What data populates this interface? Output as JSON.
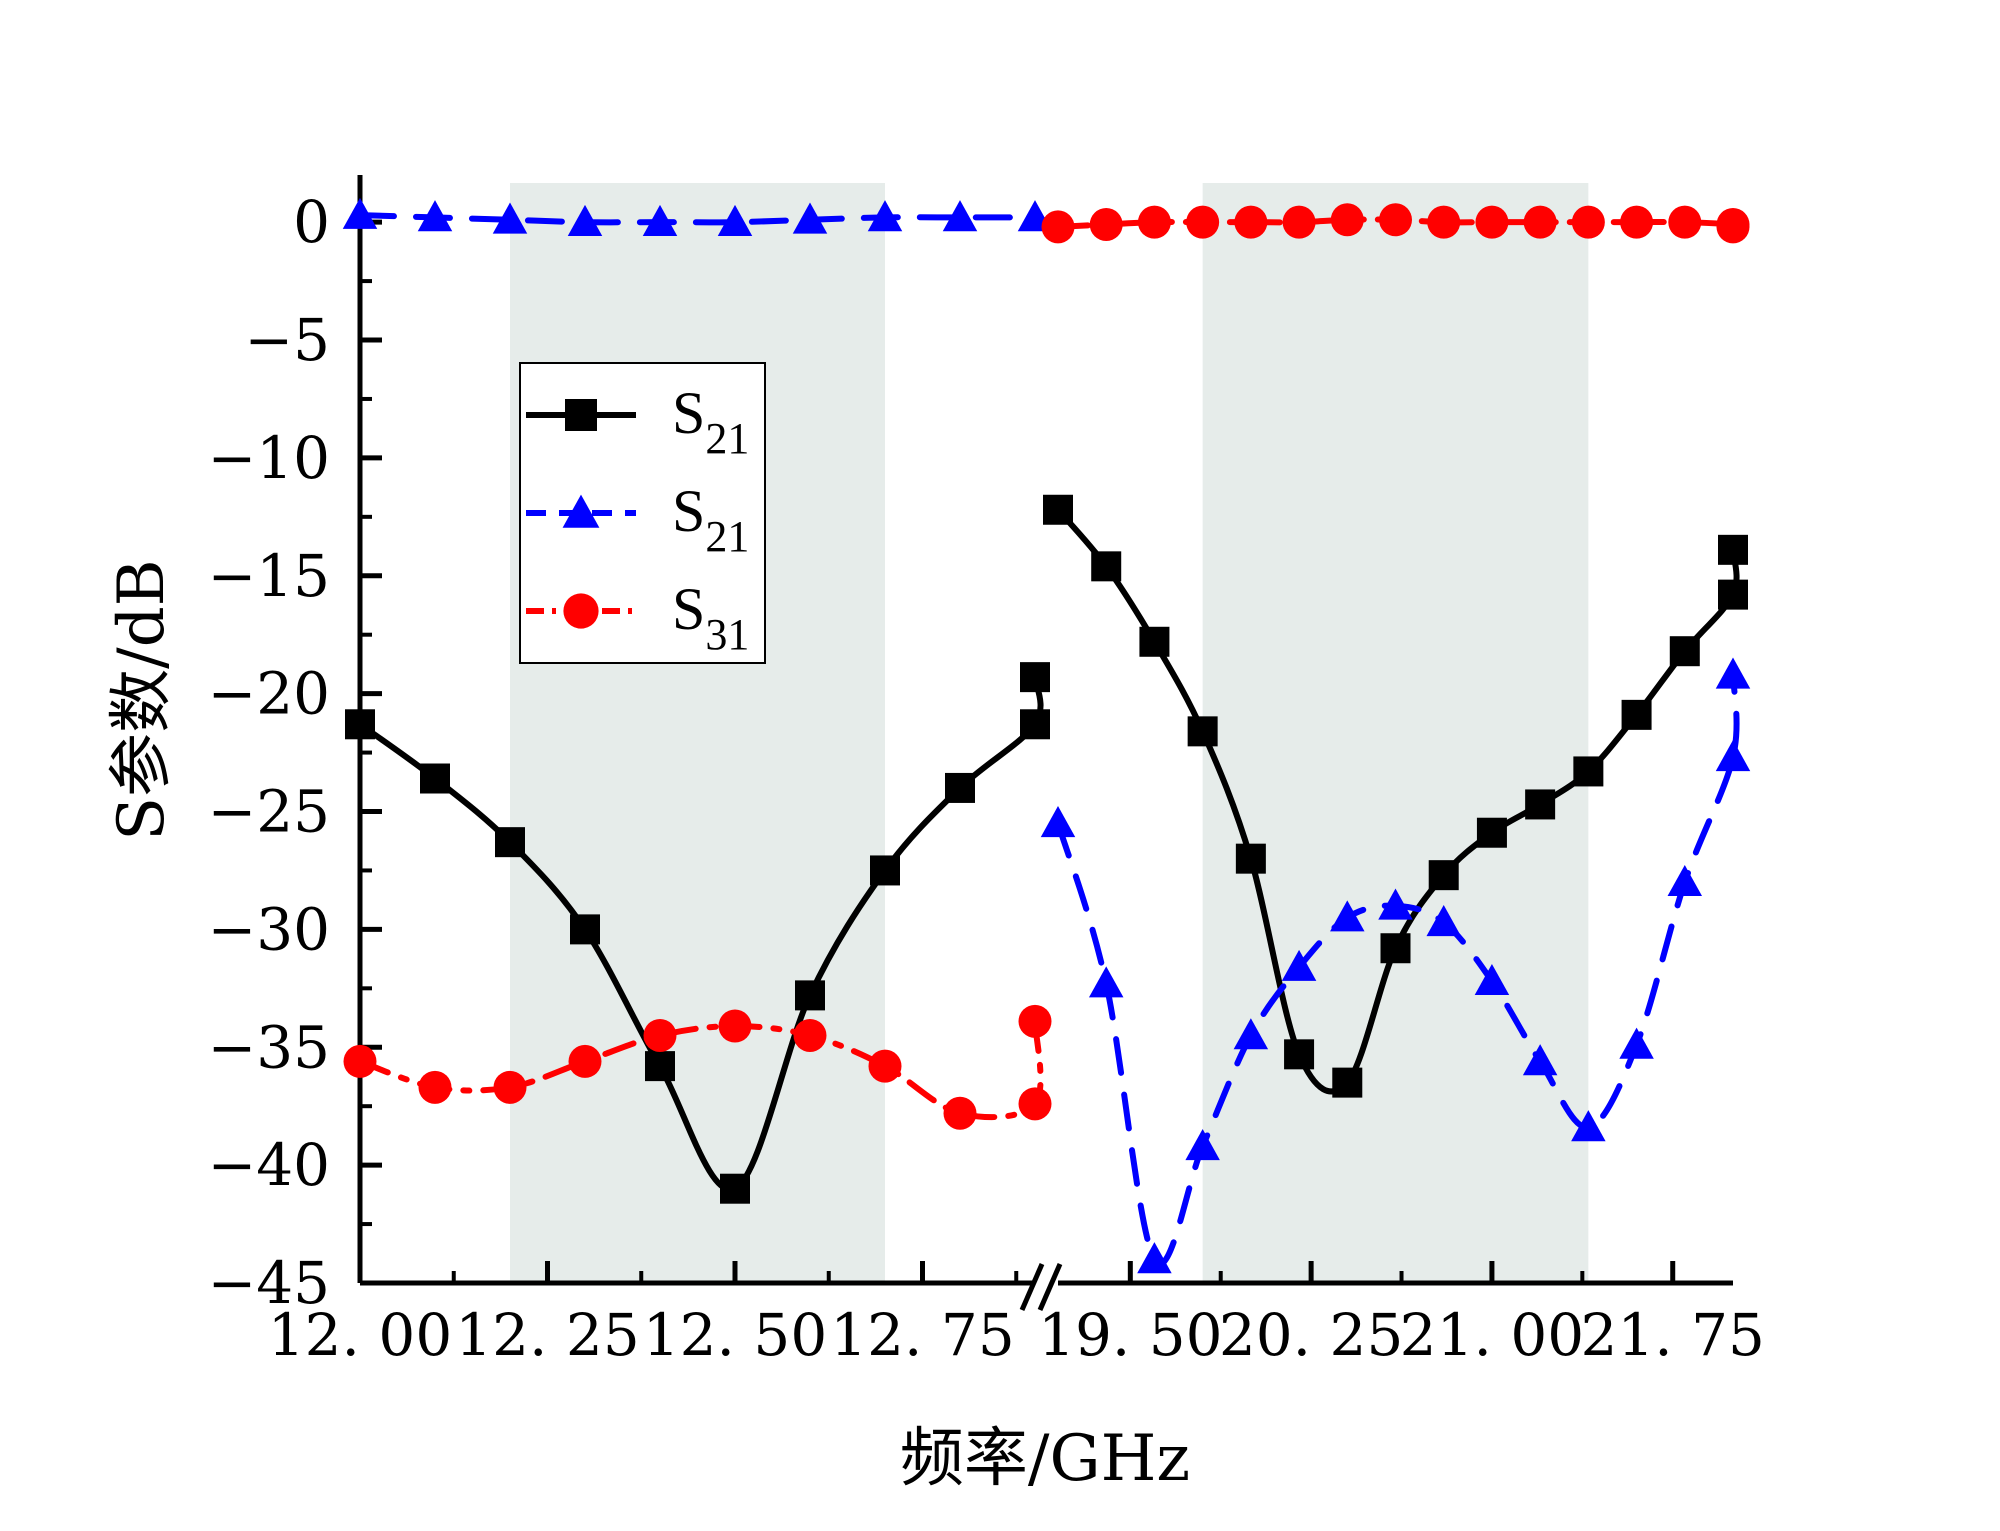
{
  "chart_data": {
    "type": "line",
    "xlabel": "频率/GHz",
    "ylabel": "S参数/dB",
    "ylim": [
      -45,
      2
    ],
    "yticks": [
      0,
      -5,
      -10,
      -15,
      -20,
      -25,
      -30,
      -35,
      -40,
      -45
    ],
    "yticklabels": [
      "0",
      "−5",
      "−10",
      "−15",
      "−20",
      "−25",
      "−30",
      "−35",
      "−40",
      "−45"
    ],
    "axis_break": "between 12.90 and 19.20 GHz",
    "left_segment": {
      "xlim": [
        12.0,
        12.9
      ],
      "xticks": [
        12.0,
        12.25,
        12.5,
        12.75
      ],
      "xticklabels": [
        "12. 00",
        "12. 25",
        "12. 50",
        "12. 75"
      ],
      "shaded_band": [
        12.2,
        12.7
      ]
    },
    "right_segment": {
      "xlim": [
        19.2,
        22.0
      ],
      "xticks": [
        19.5,
        20.25,
        21.0,
        21.75
      ],
      "xticklabels": [
        "19. 50",
        "20. 25",
        "21. 00",
        "21. 75"
      ],
      "shaded_band": [
        19.8,
        21.4
      ]
    },
    "series": [
      {
        "name": "S21",
        "legend_main": "S",
        "legend_sub": "21",
        "color": "#000000",
        "marker": "square",
        "dash": "solid",
        "left": {
          "x": [
            12.0,
            12.1,
            12.2,
            12.3,
            12.4,
            12.5,
            12.6,
            12.7,
            12.8,
            12.9
          ],
          "y": [
            -21.3,
            -23.6,
            -26.3,
            -30.0,
            -35.8,
            -41.0,
            -32.8,
            -27.5,
            -24.0,
            -21.3
          ]
        },
        "left_tail": {
          "x": [
            12.9
          ],
          "y": [
            -19.3
          ]
        },
        "right": {
          "x": [
            19.2,
            19.4,
            19.6,
            19.8,
            20.0,
            20.2,
            20.4,
            20.6,
            20.8,
            21.0,
            21.2,
            21.4,
            21.6,
            21.8,
            22.0
          ],
          "y": [
            -12.2,
            -14.6,
            -17.8,
            -21.6,
            -27.0,
            -35.3,
            -36.5,
            -30.8,
            -27.7,
            -25.9,
            -24.7,
            -23.3,
            -20.9,
            -18.2,
            -15.8
          ]
        },
        "right_tail": {
          "x": [
            22.0
          ],
          "y": [
            -13.9
          ]
        }
      },
      {
        "name": "S21",
        "legend_main": "S",
        "legend_sub": "21",
        "color": "#0000ff",
        "marker": "triangle",
        "dash": "dashed",
        "left": {
          "x": [
            12.0,
            12.1,
            12.2,
            12.3,
            12.4,
            12.5,
            12.6,
            12.7,
            12.8,
            12.9
          ],
          "y": [
            0.3,
            0.2,
            0.1,
            0.0,
            0.0,
            0.0,
            0.1,
            0.2,
            0.2,
            0.2
          ]
        },
        "right": {
          "x": [
            19.2,
            19.4,
            19.6,
            19.8,
            20.0,
            20.2,
            20.4,
            20.6,
            20.8,
            21.0,
            21.2,
            21.4,
            21.6,
            21.8,
            22.0
          ],
          "y": [
            -25.5,
            -32.3,
            -44.0,
            -39.2,
            -34.5,
            -31.6,
            -29.5,
            -29.0,
            -29.7,
            -32.2,
            -35.6,
            -38.4,
            -34.9,
            -28.0,
            -22.7
          ]
        },
        "right_tail": {
          "x": [
            22.0
          ],
          "y": [
            -19.2
          ]
        }
      },
      {
        "name": "S31",
        "legend_main": "S",
        "legend_sub": "31",
        "color": "#ff0000",
        "marker": "circle",
        "dash": "dashdot",
        "left": {
          "x": [
            12.0,
            12.1,
            12.2,
            12.3,
            12.4,
            12.5,
            12.6,
            12.7,
            12.8,
            12.9
          ],
          "y": [
            -35.6,
            -36.7,
            -36.7,
            -35.6,
            -34.5,
            -34.1,
            -34.5,
            -35.8,
            -37.8,
            -37.4
          ]
        },
        "left_tail": {
          "x": [
            12.9
          ],
          "y": [
            -33.9
          ]
        },
        "right": {
          "x": [
            19.2,
            19.4,
            19.6,
            19.8,
            20.0,
            20.2,
            20.4,
            20.6,
            20.8,
            21.0,
            21.2,
            21.4,
            21.6,
            21.8,
            22.0
          ],
          "y": [
            -0.2,
            -0.1,
            0.0,
            0.0,
            0.0,
            0.0,
            0.1,
            0.1,
            0.0,
            0.0,
            0.0,
            0.0,
            0.0,
            0.0,
            -0.1
          ]
        },
        "right_tail": {
          "x": [
            22.0
          ],
          "y": [
            -0.2
          ]
        }
      }
    ],
    "legend": {
      "position": "upper-left-inside"
    },
    "grid": false
  }
}
